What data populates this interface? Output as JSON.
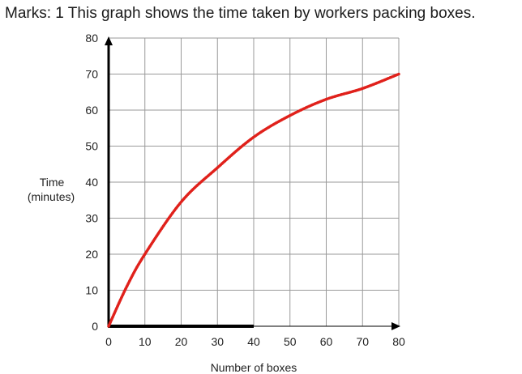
{
  "question": {
    "marks": "Marks: 1",
    "text": "This graph shows the time taken by workers packing boxes."
  },
  "chart_data": {
    "type": "line",
    "title": "",
    "xlabel": "Number of boxes",
    "ylabel_lines": [
      "Time",
      "(minutes)"
    ],
    "x_ticks": [
      0,
      10,
      20,
      30,
      40,
      50,
      60,
      70,
      80
    ],
    "y_ticks": [
      0,
      10,
      20,
      30,
      40,
      50,
      60,
      70,
      80
    ],
    "xlim": [
      0,
      80
    ],
    "ylim": [
      0,
      80
    ],
    "grid": true,
    "line_style": "dotted",
    "series": [
      {
        "color": "#e0211b",
        "x": [
          0,
          5,
          10,
          20,
          30,
          40,
          50,
          60,
          70,
          80
        ],
        "y": [
          0,
          11,
          20,
          34.5,
          44,
          52.5,
          58.5,
          63,
          66,
          70
        ]
      }
    ]
  }
}
